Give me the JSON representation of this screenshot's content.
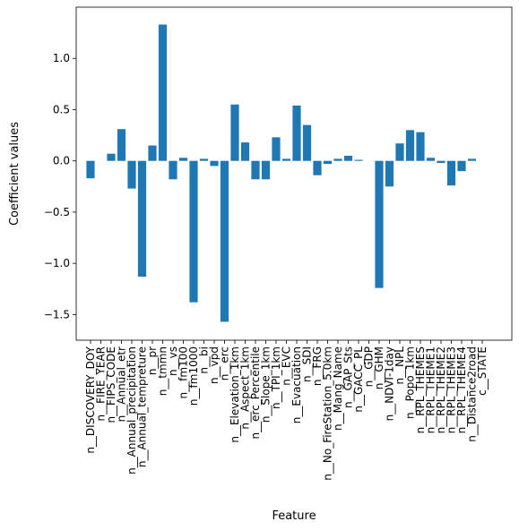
{
  "chart_data": {
    "type": "bar",
    "title": "",
    "xlabel": "Feature",
    "ylabel": "Coefficient values",
    "ylim": [
      -1.75,
      1.5
    ],
    "yticks": [
      -1.5,
      -1.0,
      -0.5,
      0.0,
      0.5,
      1.0
    ],
    "ytick_labels": [
      "−1.5",
      "−1.0",
      "−0.5",
      "0.0",
      "0.5",
      "1.0"
    ],
    "bar_color": "#1f77b4",
    "grid": false,
    "categories": [
      "n__DISCOVERY_DOY",
      "n__FIRE_YEAR",
      "n__FIPS_CODE",
      "n__Annual_etr",
      "n__Annual_precipitation",
      "n__Annual_tempreture",
      "n__pr",
      "n__tmmn",
      "n__vs",
      "n__fm100",
      "n__fm1000",
      "n__bi",
      "n__vpd",
      "n__erc",
      "n__Elevation_1km",
      "n__Aspect_1km",
      "n__erc_Percentile",
      "n__Slope_1km",
      "n__TPI_1km",
      "n__EVC",
      "n__Evacuation",
      "n__SDI",
      "n__FRG",
      "n__No_FireStation_5.0km",
      "n__Mang_Name",
      "n__GAP_Sts",
      "n__GACC_PL",
      "n__GDP",
      "n__GHM",
      "n__NDVI-1day",
      "n__NPL",
      "n__Popo_1km",
      "n__RPL_THEMES",
      "n__RPL_THEME1",
      "n__RPL_THEME2",
      "n__RPL_THEME3",
      "n__RPL_THEME4",
      "n__Distance2road",
      "c__STATE"
    ],
    "values": [
      -0.17,
      0.0,
      0.07,
      0.31,
      -0.27,
      -1.13,
      0.15,
      1.33,
      -0.18,
      0.03,
      -1.38,
      0.02,
      -0.05,
      -1.57,
      0.55,
      0.18,
      -0.18,
      -0.18,
      0.23,
      0.02,
      0.54,
      0.35,
      -0.14,
      -0.03,
      0.02,
      0.05,
      0.01,
      0.0,
      -1.24,
      -0.25,
      0.17,
      0.3,
      0.28,
      0.03,
      -0.02,
      -0.24,
      -0.1,
      0.02,
      0.0
    ]
  }
}
